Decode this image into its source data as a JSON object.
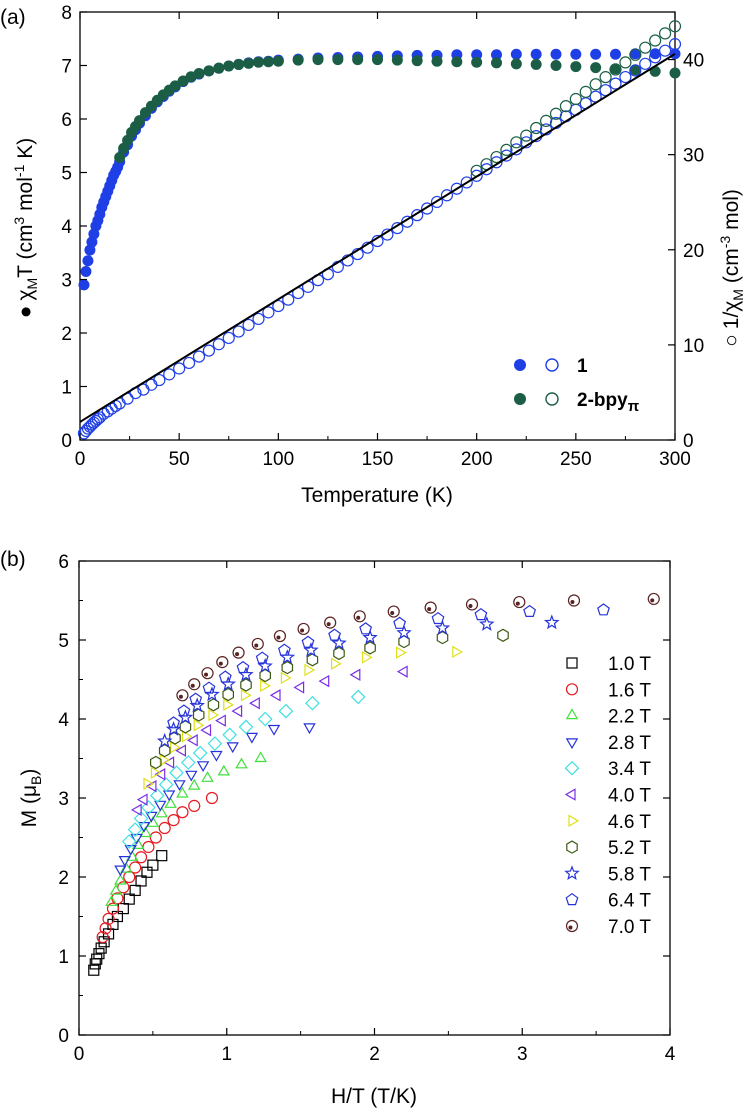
{
  "chart_data": [
    {
      "type": "scatter",
      "panel_label": "(a)",
      "xlabel": "Temperature (K)",
      "ylabel_left": {
        "symbol": "●",
        "chi": "χ",
        "sub": "M",
        "mid": "T (cm",
        "sup1": "3",
        "mol": " mol",
        "sup2": "-1",
        "end": " K)"
      },
      "ylabel_right": {
        "symbol": "○",
        "pre": "1/χ",
        "sub": "M",
        "mid": " (cm",
        "sup": "-3",
        "end": " mol)"
      },
      "xlim": [
        0,
        300
      ],
      "ylim_left": [
        0,
        8
      ],
      "ylim_right": [
        0,
        45
      ],
      "x_ticks": [
        "0",
        "50",
        "100",
        "150",
        "200",
        "250",
        "300"
      ],
      "y_left_ticks": [
        "0",
        "1",
        "2",
        "3",
        "4",
        "5",
        "6",
        "7",
        "8"
      ],
      "y_right_ticks": [
        "0",
        "10",
        "20",
        "30",
        "40"
      ],
      "legend": [
        {
          "label": "1",
          "color": "#1f3fe6"
        },
        {
          "label_main": "2-bpy",
          "label_sub": "π",
          "color": "#1b5e45"
        }
      ],
      "series": [
        {
          "name": "1 χMT",
          "axis": "left",
          "marker": "filled-circle",
          "color": "#1f3fe6",
          "x": [
            2,
            3,
            4,
            5,
            6,
            7,
            8,
            9,
            10,
            11,
            12,
            13,
            14,
            15,
            16,
            17,
            18,
            19,
            20,
            22,
            24,
            26,
            28,
            30,
            33,
            36,
            39,
            42,
            45,
            48,
            52,
            56,
            60,
            65,
            70,
            75,
            80,
            85,
            90,
            95,
            100,
            110,
            120,
            130,
            140,
            150,
            160,
            170,
            180,
            190,
            200,
            210,
            220,
            230,
            240,
            250,
            260,
            270,
            280,
            290,
            300
          ],
          "y": [
            2.9,
            3.15,
            3.35,
            3.55,
            3.7,
            3.85,
            4.0,
            4.1,
            4.22,
            4.35,
            4.45,
            4.55,
            4.65,
            4.75,
            4.85,
            4.95,
            5.02,
            5.1,
            5.2,
            5.38,
            5.52,
            5.68,
            5.8,
            5.92,
            6.06,
            6.2,
            6.32,
            6.42,
            6.52,
            6.6,
            6.7,
            6.78,
            6.84,
            6.9,
            6.95,
            6.99,
            7.02,
            7.05,
            7.07,
            7.08,
            7.1,
            7.12,
            7.14,
            7.15,
            7.16,
            7.17,
            7.18,
            7.19,
            7.19,
            7.2,
            7.2,
            7.2,
            7.21,
            7.21,
            7.21,
            7.21,
            7.21,
            7.21,
            7.22,
            7.22,
            7.22
          ]
        },
        {
          "name": "2-bpyπ χMT",
          "axis": "left",
          "marker": "filled-circle",
          "color": "#1b5e45",
          "x": [
            20,
            22,
            24,
            26,
            28,
            30,
            33,
            36,
            39,
            42,
            45,
            48,
            52,
            56,
            60,
            65,
            70,
            75,
            80,
            85,
            90,
            95,
            100,
            110,
            120,
            130,
            140,
            150,
            160,
            170,
            180,
            190,
            200,
            210,
            220,
            230,
            240,
            250,
            260,
            270,
            280,
            290,
            300
          ],
          "y": [
            5.28,
            5.45,
            5.6,
            5.75,
            5.86,
            5.97,
            6.12,
            6.24,
            6.35,
            6.45,
            6.54,
            6.62,
            6.71,
            6.79,
            6.85,
            6.9,
            6.95,
            6.99,
            7.02,
            7.04,
            7.06,
            7.07,
            7.08,
            7.1,
            7.11,
            7.11,
            7.11,
            7.11,
            7.1,
            7.09,
            7.08,
            7.07,
            7.06,
            7.05,
            7.03,
            7.02,
            7.0,
            6.98,
            6.96,
            6.94,
            6.92,
            6.89,
            6.86
          ]
        },
        {
          "name": "1 1/χM",
          "axis": "right",
          "marker": "open-circle",
          "color": "#1f3fe6",
          "x": [
            2,
            3,
            4,
            5,
            6,
            7,
            8,
            9,
            10,
            12,
            14,
            16,
            18,
            20,
            24,
            28,
            32,
            36,
            40,
            45,
            50,
            55,
            60,
            65,
            70,
            75,
            80,
            85,
            90,
            95,
            100,
            105,
            110,
            115,
            120,
            125,
            130,
            135,
            140,
            145,
            150,
            155,
            160,
            165,
            170,
            175,
            180,
            185,
            190,
            195,
            200,
            205,
            210,
            215,
            220,
            225,
            230,
            235,
            240,
            245,
            250,
            255,
            260,
            265,
            270,
            275,
            280,
            285,
            290,
            295,
            300
          ],
          "y": [
            0.7,
            0.95,
            1.2,
            1.4,
            1.62,
            1.82,
            2.0,
            2.2,
            2.37,
            2.76,
            3.0,
            3.3,
            3.58,
            3.85,
            4.35,
            4.93,
            5.3,
            5.81,
            6.3,
            6.9,
            7.52,
            8.1,
            8.77,
            9.4,
            10.07,
            10.73,
            11.4,
            12.1,
            12.73,
            13.42,
            14.08,
            14.75,
            15.45,
            16.1,
            16.8,
            17.43,
            18.2,
            18.88,
            19.55,
            20.22,
            20.92,
            21.6,
            22.28,
            22.95,
            23.64,
            24.34,
            25.03,
            25.73,
            26.42,
            27.08,
            27.78,
            28.47,
            29.2,
            29.9,
            30.56,
            31.3,
            31.95,
            32.65,
            33.33,
            34.03,
            34.72,
            35.4,
            36.1,
            36.78,
            37.47,
            38.16,
            38.85,
            39.55,
            40.24,
            40.93,
            41.62
          ]
        },
        {
          "name": "2-bpyπ 1/χM",
          "axis": "right",
          "marker": "open-circle",
          "color": "#1b5e45",
          "x": [
            200,
            205,
            210,
            215,
            220,
            225,
            230,
            235,
            240,
            245,
            250,
            255,
            260,
            265,
            270,
            275,
            280,
            285,
            290,
            295,
            300
          ],
          "y": [
            28.3,
            29.0,
            29.75,
            30.5,
            31.3,
            32.0,
            32.8,
            33.55,
            34.3,
            35.1,
            35.85,
            36.6,
            37.4,
            38.15,
            38.95,
            39.7,
            40.5,
            41.25,
            42.0,
            42.75,
            43.5
          ]
        },
        {
          "name": "fit",
          "axis": "right",
          "marker": "line",
          "color": "#000000",
          "x": [
            0,
            300
          ],
          "y": [
            1.9,
            40.6
          ]
        }
      ]
    },
    {
      "type": "scatter",
      "panel_label": "(b)",
      "xlabel": "H/T (T/K)",
      "ylabel": {
        "pre": "M (μ",
        "sub": "B",
        "end": ")"
      },
      "xlim": [
        0,
        4
      ],
      "ylim": [
        0,
        6
      ],
      "x_ticks": [
        "0",
        "1",
        "2",
        "3",
        "4"
      ],
      "y_ticks": [
        "0",
        "1",
        "2",
        "3",
        "4",
        "5",
        "6"
      ],
      "series": [
        {
          "name": "1.0 T",
          "marker": "square",
          "color": "#000000",
          "x": [
            0.1,
            0.11,
            0.12,
            0.135,
            0.15,
            0.17,
            0.2,
            0.23,
            0.26,
            0.3,
            0.34,
            0.38,
            0.42,
            0.46,
            0.5,
            0.56
          ],
          "y": [
            0.82,
            0.9,
            0.96,
            1.03,
            1.1,
            1.18,
            1.28,
            1.4,
            1.5,
            1.6,
            1.72,
            1.83,
            1.95,
            2.06,
            2.15,
            2.27
          ]
        },
        {
          "name": "1.6 T",
          "marker": "circle",
          "color": "#e6191e",
          "x": [
            0.16,
            0.18,
            0.2,
            0.23,
            0.26,
            0.3,
            0.34,
            0.38,
            0.42,
            0.47,
            0.52,
            0.58,
            0.64,
            0.7,
            0.78,
            0.9
          ],
          "y": [
            1.24,
            1.35,
            1.47,
            1.6,
            1.73,
            1.87,
            2.0,
            2.12,
            2.25,
            2.38,
            2.5,
            2.62,
            2.72,
            2.82,
            2.9,
            3.0
          ]
        },
        {
          "name": "2.2 T",
          "marker": "triangle-up",
          "color": "#3fe03a",
          "x": [
            0.22,
            0.25,
            0.28,
            0.32,
            0.36,
            0.4,
            0.45,
            0.5,
            0.56,
            0.62,
            0.7,
            0.78,
            0.87,
            0.98,
            1.1,
            1.23
          ],
          "y": [
            1.68,
            1.82,
            1.95,
            2.1,
            2.25,
            2.4,
            2.55,
            2.68,
            2.8,
            2.92,
            3.05,
            3.15,
            3.25,
            3.33,
            3.42,
            3.5
          ]
        },
        {
          "name": "2.8 T",
          "marker": "triangle-down",
          "color": "#2633d9",
          "x": [
            0.28,
            0.31,
            0.35,
            0.39,
            0.44,
            0.49,
            0.55,
            0.61,
            0.68,
            0.76,
            0.84,
            0.93,
            1.04,
            1.17,
            1.32,
            1.56
          ],
          "y": [
            2.1,
            2.22,
            2.36,
            2.5,
            2.65,
            2.78,
            2.92,
            3.05,
            3.18,
            3.3,
            3.42,
            3.55,
            3.66,
            3.78,
            3.88,
            3.9
          ]
        },
        {
          "name": "3.4 T",
          "marker": "diamond",
          "color": "#3fe0e0",
          "x": [
            0.34,
            0.38,
            0.42,
            0.47,
            0.53,
            0.59,
            0.66,
            0.74,
            0.82,
            0.92,
            1.02,
            1.13,
            1.26,
            1.4,
            1.58,
            1.89
          ],
          "y": [
            2.45,
            2.6,
            2.74,
            2.88,
            3.03,
            3.17,
            3.32,
            3.45,
            3.57,
            3.69,
            3.8,
            3.9,
            4.0,
            4.1,
            4.2,
            4.28
          ]
        },
        {
          "name": "4.0 T",
          "marker": "triangle-left",
          "color": "#7b2ee6",
          "x": [
            0.4,
            0.44,
            0.5,
            0.56,
            0.62,
            0.7,
            0.78,
            0.87,
            0.97,
            1.08,
            1.2,
            1.34,
            1.5,
            1.67,
            1.88,
            2.2
          ],
          "y": [
            2.85,
            2.98,
            3.15,
            3.3,
            3.45,
            3.6,
            3.73,
            3.86,
            3.98,
            4.1,
            4.2,
            4.3,
            4.4,
            4.48,
            4.56,
            4.6
          ]
        },
        {
          "name": "4.6 T",
          "marker": "triangle-right",
          "color": "#e0e01a",
          "x": [
            0.46,
            0.51,
            0.57,
            0.64,
            0.72,
            0.8,
            0.9,
            1.0,
            1.12,
            1.25,
            1.39,
            1.55,
            1.73,
            1.94,
            2.17,
            2.55
          ],
          "y": [
            3.18,
            3.32,
            3.48,
            3.64,
            3.78,
            3.92,
            4.05,
            4.18,
            4.3,
            4.42,
            4.52,
            4.62,
            4.7,
            4.78,
            4.84,
            4.85
          ]
        },
        {
          "name": "5.2 T",
          "marker": "hexagon",
          "color": "#3d5a13",
          "x": [
            0.52,
            0.58,
            0.65,
            0.72,
            0.81,
            0.91,
            1.01,
            1.13,
            1.26,
            1.41,
            1.58,
            1.76,
            1.97,
            2.2,
            2.46,
            2.87
          ],
          "y": [
            3.45,
            3.6,
            3.76,
            3.9,
            4.05,
            4.18,
            4.31,
            4.43,
            4.55,
            4.65,
            4.75,
            4.83,
            4.9,
            4.98,
            5.03,
            5.06
          ]
        },
        {
          "name": "5.8 T",
          "marker": "star",
          "color": "#2633d9",
          "x": [
            0.58,
            0.64,
            0.72,
            0.8,
            0.9,
            1.01,
            1.13,
            1.26,
            1.41,
            1.57,
            1.76,
            1.97,
            2.2,
            2.46,
            2.76,
            3.2
          ],
          "y": [
            3.72,
            3.87,
            4.02,
            4.17,
            4.31,
            4.44,
            4.56,
            4.67,
            4.78,
            4.87,
            4.96,
            5.03,
            5.09,
            5.15,
            5.2,
            5.22
          ]
        },
        {
          "name": "6.4 T",
          "marker": "pentagon",
          "color": "#2633d9",
          "x": [
            0.64,
            0.71,
            0.79,
            0.88,
            0.99,
            1.11,
            1.24,
            1.39,
            1.55,
            1.73,
            1.94,
            2.17,
            2.43,
            2.72,
            3.05,
            3.55
          ],
          "y": [
            3.95,
            4.1,
            4.25,
            4.39,
            4.53,
            4.65,
            4.77,
            4.87,
            4.97,
            5.06,
            5.14,
            5.21,
            5.27,
            5.32,
            5.36,
            5.38
          ]
        },
        {
          "name": "7.0 T",
          "marker": "shaded-circle",
          "color": "#5a2222",
          "x": [
            0.7,
            0.78,
            0.87,
            0.97,
            1.08,
            1.21,
            1.36,
            1.52,
            1.7,
            1.9,
            2.13,
            2.38,
            2.66,
            2.98,
            3.35,
            3.89
          ],
          "y": [
            4.3,
            4.44,
            4.58,
            4.72,
            4.84,
            4.95,
            5.05,
            5.14,
            5.22,
            5.3,
            5.36,
            5.41,
            5.45,
            5.48,
            5.5,
            5.52
          ]
        }
      ]
    }
  ]
}
